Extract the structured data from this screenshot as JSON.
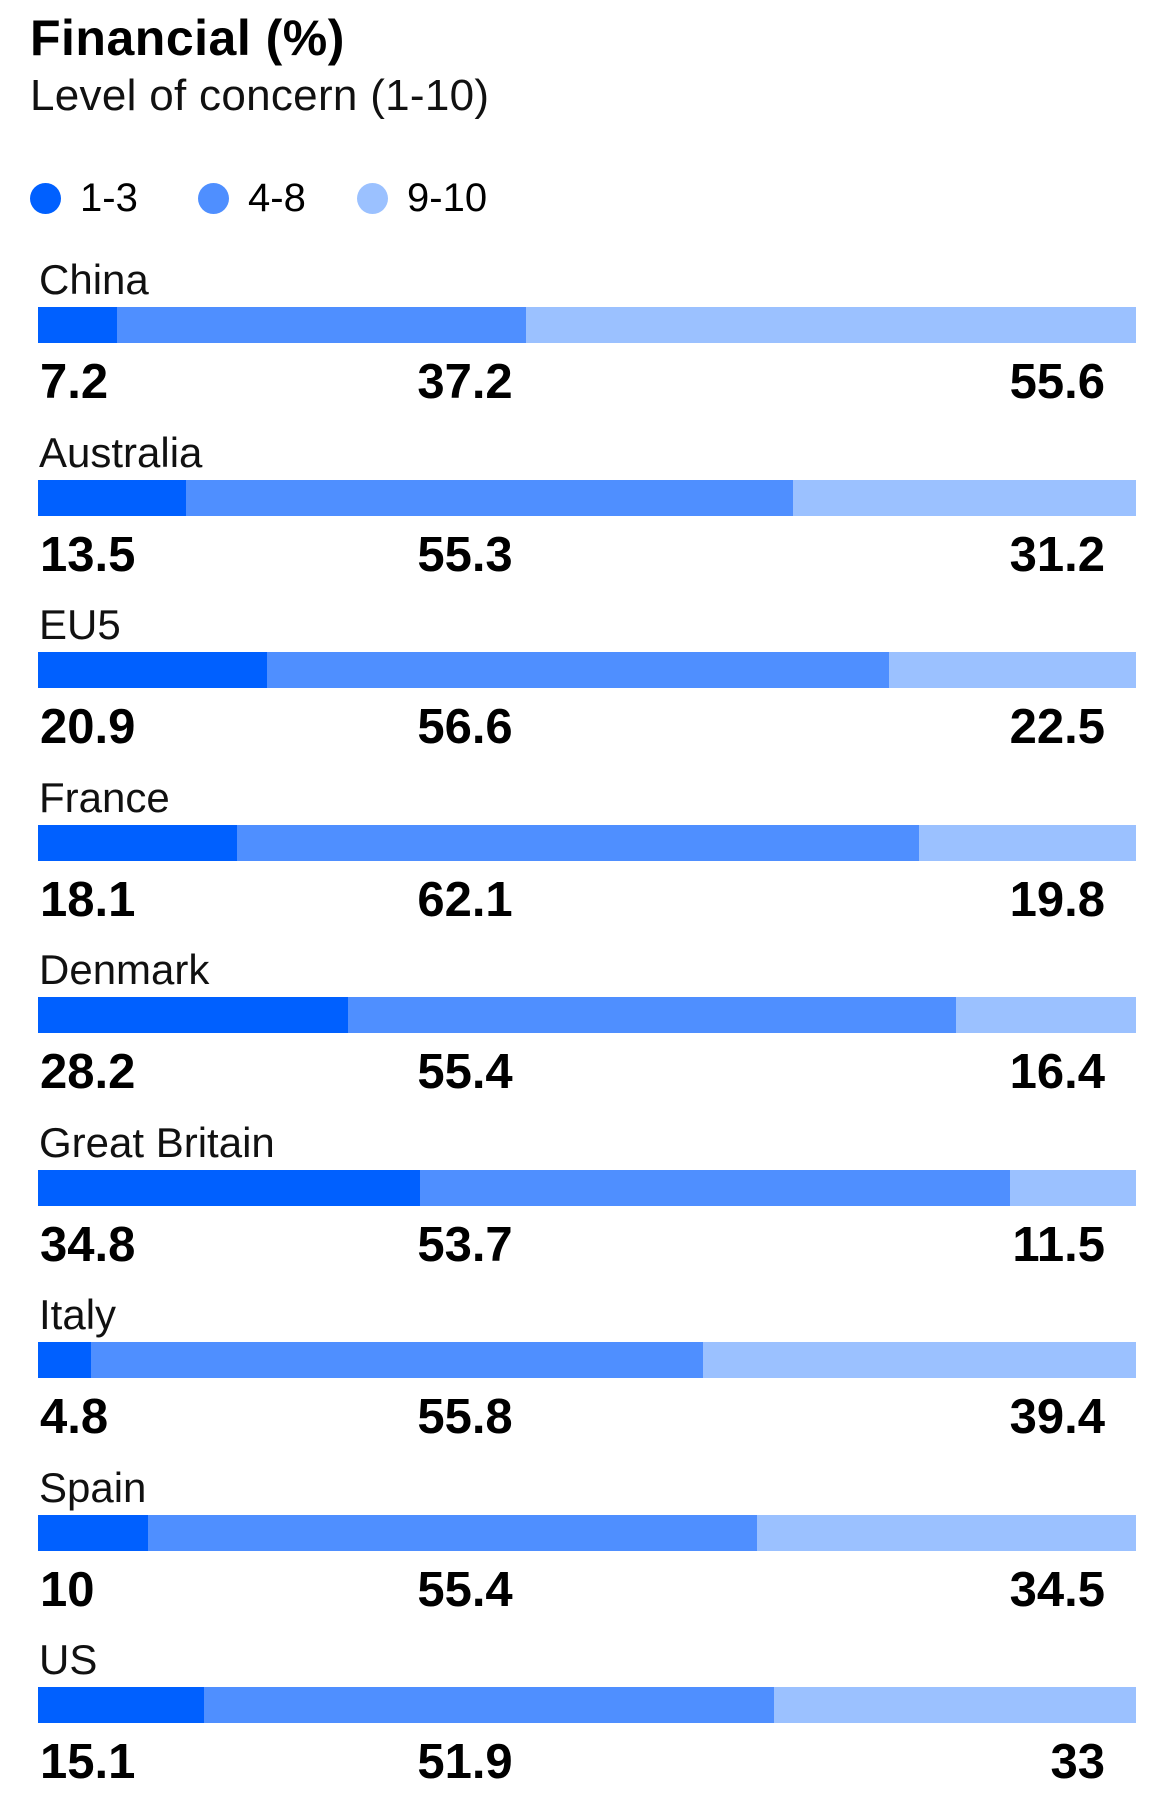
{
  "chart_data": {
    "type": "bar",
    "orientation": "horizontal-stacked-100",
    "title": "Financial (%)",
    "subtitle": "Level of concern (1-10)",
    "xlabel": "",
    "ylabel": "",
    "xlim": [
      0,
      100
    ],
    "legend": {
      "placement": "top-left",
      "entries": [
        {
          "label": "1-3",
          "color": "#0060FF"
        },
        {
          "label": "4-8",
          "color": "#4F8FFF"
        },
        {
          "label": "9-10",
          "color": "#9BC1FF"
        }
      ]
    },
    "categories": [
      "China",
      "Australia",
      "EU5",
      "France",
      "Denmark",
      "Great Britain",
      "Italy",
      "Spain",
      "US"
    ],
    "series": [
      {
        "name": "1-3",
        "color": "#0060FF",
        "values": [
          7.2,
          13.5,
          20.9,
          18.1,
          28.2,
          34.8,
          4.8,
          10,
          15.1
        ]
      },
      {
        "name": "4-8",
        "color": "#4F8FFF",
        "values": [
          37.2,
          55.3,
          56.6,
          62.1,
          55.4,
          53.7,
          55.8,
          55.4,
          51.9
        ]
      },
      {
        "name": "9-10",
        "color": "#9BC1FF",
        "values": [
          55.6,
          31.2,
          22.5,
          19.8,
          16.4,
          11.5,
          39.4,
          34.5,
          33
        ]
      }
    ],
    "value_labels": [
      [
        "7.2",
        "37.2",
        "55.6"
      ],
      [
        "13.5",
        "55.3",
        "31.2"
      ],
      [
        "20.9",
        "56.6",
        "22.5"
      ],
      [
        "18.1",
        "62.1",
        "19.8"
      ],
      [
        "28.2",
        "55.4",
        "16.4"
      ],
      [
        "34.8",
        "53.7",
        "11.5"
      ],
      [
        "4.8",
        "55.8",
        "39.4"
      ],
      [
        "10",
        "55.4",
        "34.5"
      ],
      [
        "15.1",
        "51.9",
        "33"
      ]
    ]
  }
}
